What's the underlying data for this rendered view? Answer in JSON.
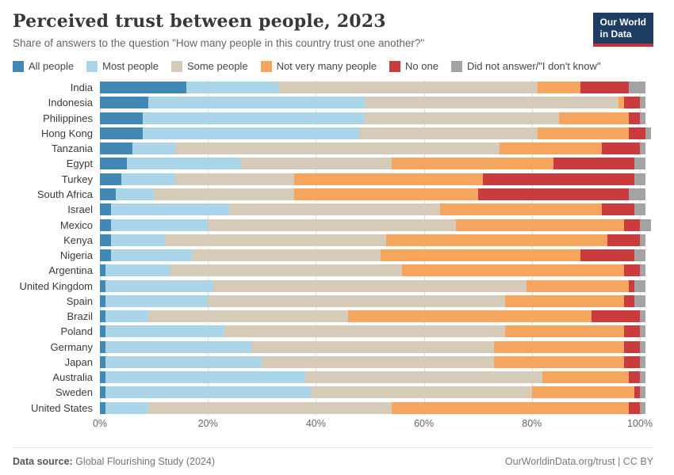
{
  "logo": {
    "line1": "Our World",
    "line2": "in Data"
  },
  "header": {
    "title": "Perceived trust between people, 2023",
    "subtitle": "Share of answers to the question \"How many people in this country trust one another?\""
  },
  "footer": {
    "source_label": "Data source:",
    "source_text": " Global Flourishing Study (2024)",
    "right_text": "OurWorldinData.org/trust | CC BY"
  },
  "chart_data": {
    "type": "bar",
    "stacked": true,
    "orientation": "horizontal",
    "title": "Perceived trust between people, 2023",
    "xlabel": "",
    "ylabel": "",
    "x_ticks": [
      "0%",
      "20%",
      "40%",
      "60%",
      "80%",
      "100%"
    ],
    "x_tick_values": [
      0,
      20,
      40,
      60,
      80,
      100
    ],
    "xlim": [
      0,
      102.5
    ],
    "grid": true,
    "legend_position": "top",
    "categories": [
      "India",
      "Indonesia",
      "Philippines",
      "Hong Kong",
      "Tanzania",
      "Egypt",
      "Turkey",
      "South Africa",
      "Israel",
      "Mexico",
      "Kenya",
      "Nigeria",
      "Argentina",
      "United Kingdom",
      "Spain",
      "Brazil",
      "Poland",
      "Germany",
      "Japan",
      "Australia",
      "Sweden",
      "United States"
    ],
    "series": [
      {
        "name": "All people",
        "color": "#4288b5",
        "values": [
          16,
          9,
          8,
          8,
          6,
          5,
          4,
          3,
          2,
          2,
          2,
          2,
          1,
          1,
          1,
          1,
          1,
          1,
          1,
          1,
          1,
          1
        ]
      },
      {
        "name": "Most people",
        "color": "#aad4e8",
        "values": [
          17,
          40,
          41,
          40,
          8,
          21,
          10,
          7,
          22,
          18,
          10,
          15,
          12,
          20,
          19,
          8,
          22,
          27,
          29,
          37,
          38,
          8
        ]
      },
      {
        "name": "Some people",
        "color": "#d6cbb8",
        "values": [
          48,
          47,
          36,
          33,
          60,
          28,
          22,
          26,
          39,
          46,
          41,
          35,
          43,
          58,
          55,
          37,
          52,
          45,
          43,
          44,
          41,
          45
        ]
      },
      {
        "name": "Not very many people",
        "color": "#f6a55f",
        "values": [
          8,
          1,
          13,
          17,
          19,
          30,
          35,
          34,
          30,
          31,
          41,
          37,
          41,
          19,
          22,
          45,
          22,
          24,
          24,
          16,
          19,
          44
        ]
      },
      {
        "name": "No one",
        "color": "#c93b3c",
        "values": [
          9,
          3,
          2,
          3,
          7,
          15,
          28,
          28,
          6,
          3,
          6,
          10,
          3,
          1,
          2,
          9,
          3,
          3,
          3,
          2,
          1,
          2
        ]
      },
      {
        "name": "Did not answer/\"I don't know\"",
        "color": "#a3a3a3",
        "values": [
          3,
          1,
          1,
          1,
          1,
          2,
          2,
          3,
          2,
          2,
          1,
          2,
          1,
          2,
          2,
          1,
          1,
          1,
          1,
          1,
          1,
          1
        ]
      }
    ]
  }
}
